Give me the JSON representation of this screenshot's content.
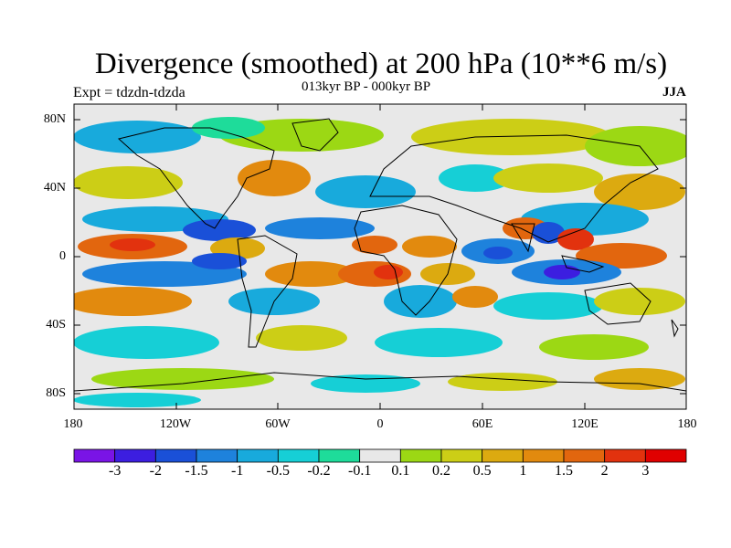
{
  "title": "Divergence (smoothed) at 200 hPa (10**6 m/s)",
  "subtitle": "013kyr BP - 000kyr BP",
  "experiment_label": "Expt = tdzdn-tdzda",
  "season": "JJA",
  "lat_labels": [
    "80N",
    "40N",
    "0",
    "40S",
    "80S"
  ],
  "lon_labels": [
    "180",
    "120W",
    "60W",
    "0",
    "60E",
    "120E",
    "180"
  ],
  "colorbar": {
    "labels": [
      "-3",
      "-2",
      "-1.5",
      "-1",
      "-0.5",
      "-0.2",
      "-0.1",
      "0.1",
      "0.2",
      "0.5",
      "1",
      "1.5",
      "2",
      "3"
    ],
    "colors": [
      "#7a14e6",
      "#3c1ee0",
      "#1a50d8",
      "#1e82dc",
      "#18aadc",
      "#16cfd6",
      "#1edc9a",
      "#e8e8e8",
      "#9cd814",
      "#ccce16",
      "#dcaa10",
      "#e28a0e",
      "#e2660e",
      "#e2320e",
      "#e00000"
    ]
  },
  "colors": {
    "land_outline": "#000000",
    "neutral": "#e8e8e8"
  }
}
